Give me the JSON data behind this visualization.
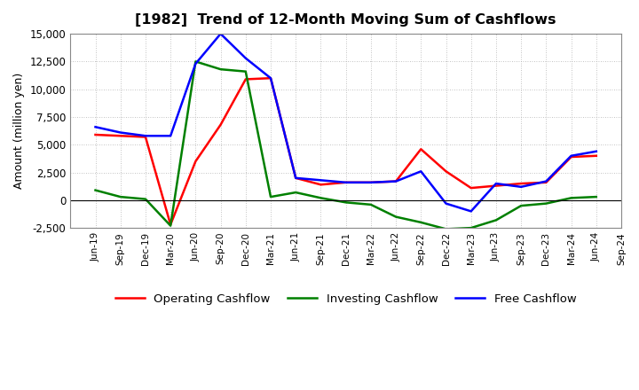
{
  "title": "[1982]  Trend of 12-Month Moving Sum of Cashflows",
  "ylabel": "Amount (million yen)",
  "ylim": [
    -2500,
    15000
  ],
  "yticks": [
    -2500,
    0,
    2500,
    5000,
    7500,
    10000,
    12500,
    15000
  ],
  "labels": [
    "Jun-19",
    "Sep-19",
    "Dec-19",
    "Mar-20",
    "Jun-20",
    "Sep-20",
    "Dec-20",
    "Mar-21",
    "Jun-21",
    "Sep-21",
    "Dec-21",
    "Mar-22",
    "Jun-22",
    "Sep-22",
    "Dec-22",
    "Mar-23",
    "Jun-23",
    "Sep-23",
    "Dec-23",
    "Mar-24",
    "Jun-24",
    "Sep-24"
  ],
  "operating": [
    5900,
    5800,
    5700,
    -2200,
    3500,
    6800,
    10900,
    11000,
    2000,
    1400,
    1600,
    1600,
    1700,
    4600,
    2600,
    1100,
    1300,
    1500,
    1600,
    3900,
    4000,
    null
  ],
  "investing": [
    900,
    300,
    100,
    -2300,
    12500,
    11800,
    11600,
    300,
    700,
    200,
    -200,
    -400,
    -1500,
    -2000,
    -2600,
    -2500,
    -1800,
    -500,
    -300,
    200,
    300,
    null
  ],
  "free": [
    6600,
    6100,
    5800,
    5800,
    12300,
    15000,
    12800,
    11000,
    2000,
    1800,
    1600,
    1600,
    1700,
    2600,
    -300,
    -1000,
    1500,
    1200,
    1700,
    4000,
    4400,
    null
  ],
  "op_color": "#ff0000",
  "inv_color": "#008000",
  "free_color": "#0000ff",
  "legend_labels": [
    "Operating Cashflow",
    "Investing Cashflow",
    "Free Cashflow"
  ],
  "bg_color": "#ffffff",
  "grid_color": "#b0b0b0"
}
